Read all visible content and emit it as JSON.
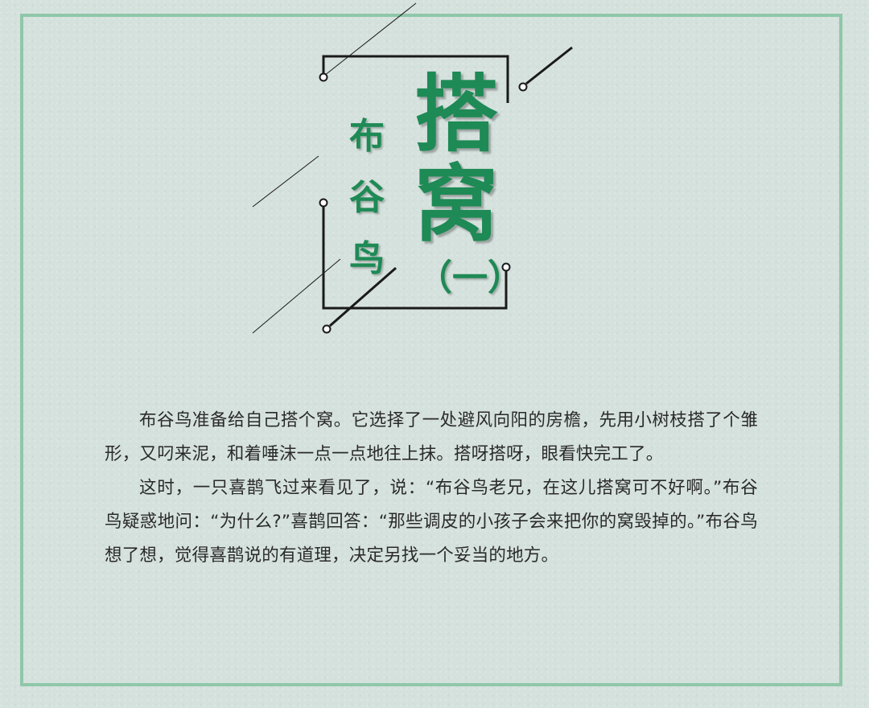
{
  "title": {
    "main": [
      "搭",
      "窝"
    ],
    "sub": [
      "布",
      "谷",
      "鸟"
    ],
    "part": "（一）"
  },
  "story": {
    "paragraphs": [
      "布谷鸟准备给自己搭个窝。它选择了一处避风向阳的房檐，先用小树枝搭了个雏形，又叼来泥，和着唾沫一点一点地往上抹。搭呀搭呀，眼看快完工了。",
      "这时，一只喜鹊飞过来看见了，说：“布谷鸟老兄，在这儿搭窝可不好啊。”布谷鸟疑惑地问：“为什么?”喜鹊回答：“那些调皮的小孩子会来把你的窝毁掉的。”布谷鸟想了想，觉得喜鹊说的有道理，决定另找一个妥当的地方。"
    ]
  },
  "colors": {
    "background": "#d5e1dd",
    "frame": "#8fc7a9",
    "title": "#1e8a55",
    "text": "#2a2a2a",
    "lines": "#1a1a1a"
  }
}
